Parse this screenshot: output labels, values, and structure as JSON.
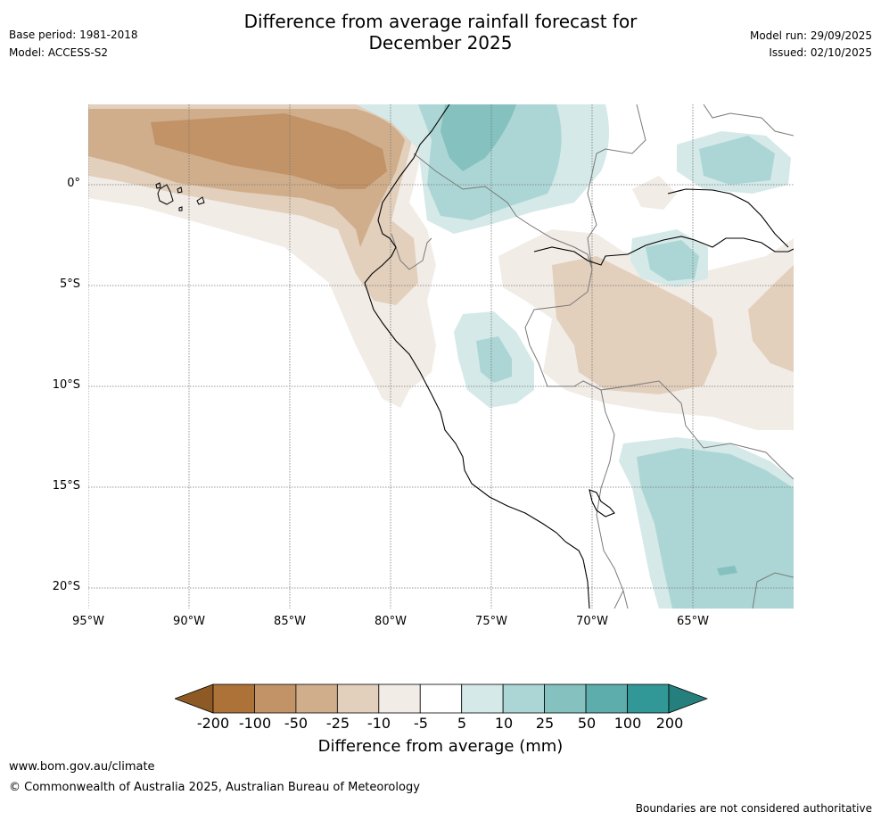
{
  "header": {
    "title_line1": "Difference from average rainfall forecast for",
    "title_line2": "December 2025",
    "base_period": "Base period: 1981-2018",
    "model": "Model: ACCESS-S2",
    "model_run": "Model run: 29/09/2025",
    "issued": "Issued: 02/10/2025"
  },
  "map": {
    "extent": {
      "lon_min": -95,
      "lon_max": -60,
      "lat_min": -21,
      "lat_max": 4
    },
    "lat_labels": [
      "0°",
      "5°S",
      "10°S",
      "15°S",
      "20°S"
    ],
    "lat_values": [
      0,
      -5,
      -10,
      -15,
      -20
    ],
    "lon_labels": [
      "95°W",
      "90°W",
      "85°W",
      "80°W",
      "75°W",
      "70°W",
      "65°W"
    ],
    "lon_values": [
      -95,
      -90,
      -85,
      -80,
      -75,
      -70,
      -65
    ]
  },
  "legend": {
    "ticks": [
      "-200",
      "-100",
      "-50",
      "-25",
      "-10",
      "-5",
      "5",
      "10",
      "25",
      "50",
      "100",
      "200"
    ],
    "colors": [
      "#ad7238",
      "#c19367",
      "#d0ae8c",
      "#e2cfbc",
      "#f1ece6",
      "#ffffff",
      "#d4e9e8",
      "#acd6d5",
      "#84c1bf",
      "#5cadac",
      "#319897"
    ],
    "extend_low_color": "#8d5a26",
    "extend_high_color": "#25807d",
    "label": "Difference from average (mm)"
  },
  "footer": {
    "website": "www.bom.gov.au/climate",
    "copyright": "© Commonwealth of Australia 2025, Australian Bureau of Meteorology",
    "disclaimer": "Boundaries are not considered authoritative"
  }
}
